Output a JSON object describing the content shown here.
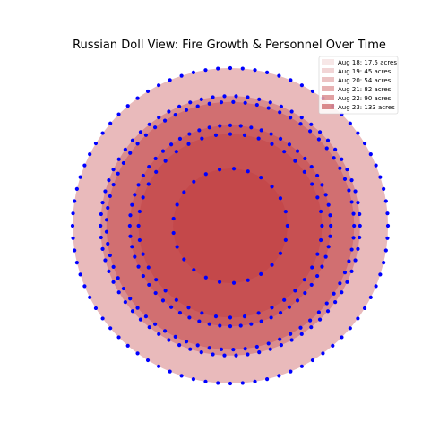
{
  "chart_data": {
    "type": "nested-circles",
    "title": "Russian Doll View: Fire Growth & Personnel Over Time",
    "legend_position": "top-right",
    "grid": false,
    "axes_visible": false,
    "area_unit": "acres",
    "series": [
      {
        "name": "Aug 18: 17.5 acres",
        "date": "Aug 18",
        "acres": 17.5
      },
      {
        "name": "Aug 19: 45 acres",
        "date": "Aug 19",
        "acres": 45
      },
      {
        "name": "Aug 20: 54 acres",
        "date": "Aug 20",
        "acres": 54
      },
      {
        "name": "Aug 21: 82 acres",
        "date": "Aug 21",
        "acres": 82
      },
      {
        "name": "Aug 22: 90 acres",
        "date": "Aug 22",
        "acres": 90
      },
      {
        "name": "Aug 23: 133 acres",
        "date": "Aug 23",
        "acres": 133
      }
    ],
    "personnel_markers": {
      "color": "#0000ff",
      "counts": [
        25,
        40,
        60,
        65,
        70,
        80
      ]
    },
    "colors": {
      "fill": "#c0383c",
      "background": "#ffffff",
      "legend_border": "#cccccc"
    }
  }
}
